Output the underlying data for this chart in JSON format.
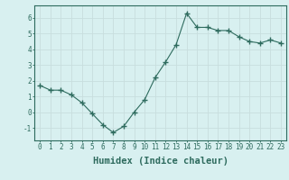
{
  "x": [
    0,
    1,
    2,
    3,
    4,
    5,
    6,
    7,
    8,
    9,
    10,
    11,
    12,
    13,
    14,
    15,
    16,
    17,
    18,
    19,
    20,
    21,
    22,
    23
  ],
  "y": [
    1.7,
    1.4,
    1.4,
    1.1,
    0.6,
    -0.1,
    -0.8,
    -1.3,
    -0.9,
    0.0,
    0.8,
    2.2,
    3.2,
    4.3,
    6.3,
    5.4,
    5.4,
    5.2,
    5.2,
    4.8,
    4.5,
    4.4,
    4.6,
    4.4
  ],
  "xlim": [
    -0.5,
    23.5
  ],
  "ylim": [
    -1.8,
    6.8
  ],
  "yticks": [
    -1,
    0,
    1,
    2,
    3,
    4,
    5,
    6
  ],
  "xticks": [
    0,
    1,
    2,
    3,
    4,
    5,
    6,
    7,
    8,
    9,
    10,
    11,
    12,
    13,
    14,
    15,
    16,
    17,
    18,
    19,
    20,
    21,
    22,
    23
  ],
  "xlabel": "Humidex (Indice chaleur)",
  "line_color": "#2e6b5e",
  "marker": "+",
  "marker_size": 5,
  "bg_color": "#d8f0f0",
  "grid_color": "#c8dede",
  "axis_color": "#2e6b5e",
  "tick_label_fontsize": 5.5,
  "xlabel_fontsize": 7.5
}
